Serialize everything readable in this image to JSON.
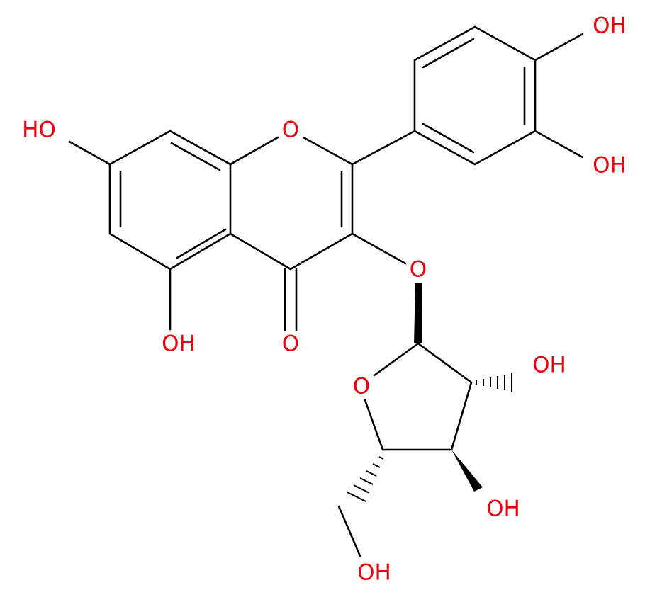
{
  "atoms": [
    {
      "label": "HO"
    },
    {
      "label": "O"
    },
    {
      "label": "OH"
    },
    {
      "label": "OH"
    },
    {
      "label": "OH"
    },
    {
      "label": "O"
    },
    {
      "label": "O"
    },
    {
      "label": "O"
    },
    {
      "label": "OH"
    },
    {
      "label": "OH"
    },
    {
      "label": "OH"
    }
  ]
}
